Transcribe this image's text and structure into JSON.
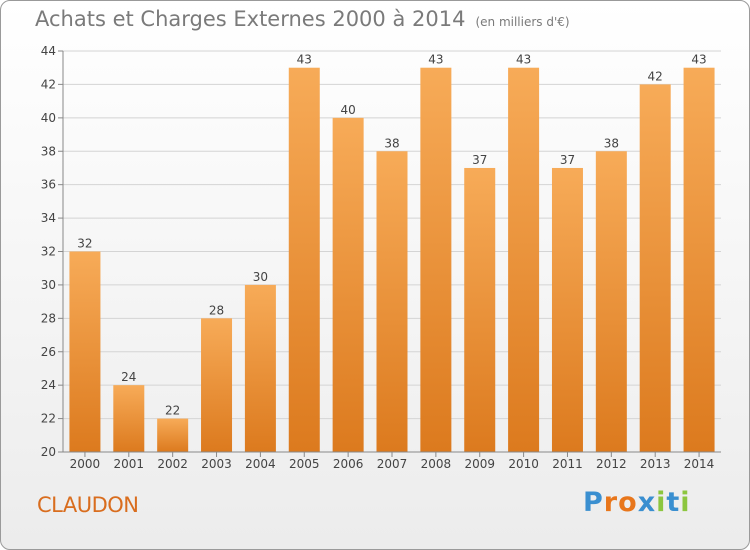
{
  "title": "Achats et Charges Externes 2000 à 2014",
  "unit": "(en milliers d'€)",
  "town": "CLAUDON",
  "logo": {
    "text": "Proxiti",
    "colors": [
      "#3a8fd0",
      "#e8761b",
      "#e8761b",
      "#3a8fd0",
      "#8cc63f",
      "#3a8fd0",
      "#8cc63f"
    ]
  },
  "colors": {
    "bar_light": "#f7ab58",
    "bar_dark": "#dc7a1e",
    "grid": "#d4d4d4",
    "axis_text": "#444444",
    "town": "#d96d1e"
  },
  "chart_data": {
    "type": "bar",
    "categories": [
      "2000",
      "2001",
      "2002",
      "2003",
      "2004",
      "2005",
      "2006",
      "2007",
      "2008",
      "2009",
      "2010",
      "2011",
      "2012",
      "2013",
      "2014"
    ],
    "values": [
      32,
      24,
      22,
      28,
      30,
      43,
      40,
      38,
      43,
      37,
      43,
      37,
      38,
      42,
      43
    ],
    "ylim": [
      20,
      44
    ],
    "yticks": [
      20,
      22,
      24,
      26,
      28,
      30,
      32,
      34,
      36,
      38,
      40,
      42,
      44
    ],
    "title": "Achats et Charges Externes 2000 à 2014",
    "subtitle": "(en milliers d'€)",
    "xlabel": "",
    "ylabel": "",
    "grid": true,
    "data_labels": true
  }
}
